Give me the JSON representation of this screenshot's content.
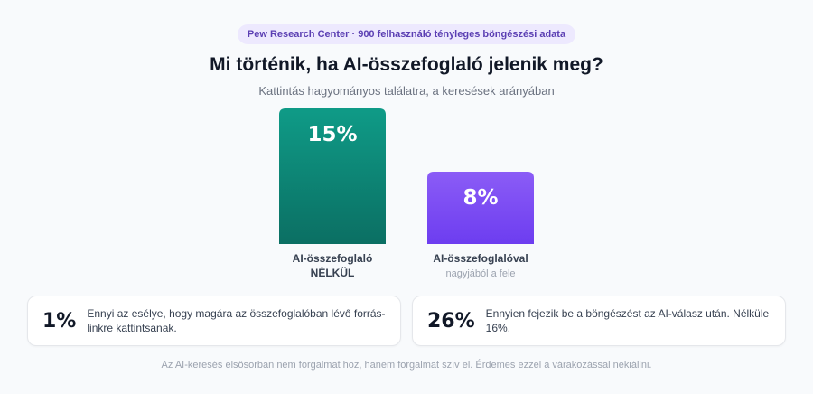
{
  "source_badge": "Pew Research Center · 900 felhasználó tényleges böngészési adata",
  "title": "Mi történik, ha AI-összefoglaló jelenik meg?",
  "subtitle": "Kattintás hagyományos találatra, a keresések arányában",
  "colors": {
    "bar_without": [
      "#0f9b87",
      "#0b6f63"
    ],
    "bar_with": [
      "#8b5cf6",
      "#6d3df0"
    ],
    "accent_text": "#5b3fb3"
  },
  "chart_data": {
    "type": "bar",
    "categories": [
      {
        "lines": [
          "AI-összefoglaló",
          "NÉLKÜL"
        ],
        "sub": ""
      },
      {
        "lines": [
          "AI-összefoglalóval"
        ],
        "sub": "nagyjából a fele"
      }
    ],
    "values": [
      15,
      8
    ],
    "value_labels": [
      "15%",
      "8%"
    ],
    "ylim": [
      0,
      15
    ],
    "grid": false,
    "legend": "none"
  },
  "cards": [
    {
      "stat": "1%",
      "text": "Ennyi az esélye, hogy magára az összefoglalóban lévő forrás-linkre kattintsanak."
    },
    {
      "stat": "26%",
      "text": "Ennyien fejezik be a böngészést az AI-válasz után. Nélküle 16%."
    }
  ],
  "footer": "Az AI-keresés elsősorban nem forgalmat hoz, hanem forgalmat szív el. Érdemes ezzel a várakozással nekiállni."
}
